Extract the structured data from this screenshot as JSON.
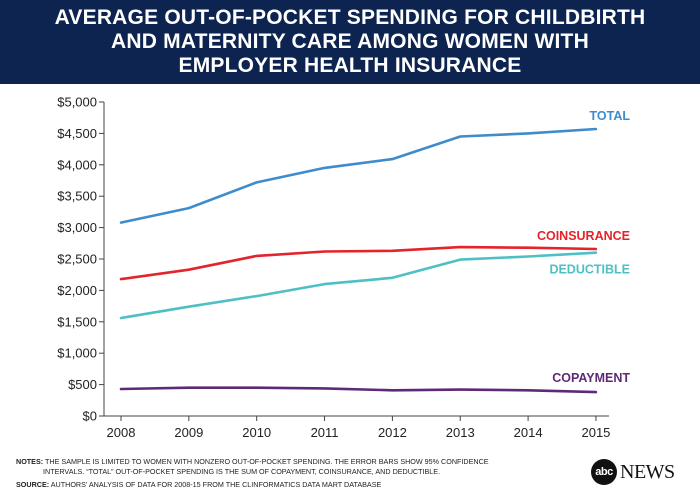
{
  "header": {
    "title_lines": [
      "AVERAGE OUT-OF-POCKET SPENDING FOR CHILDBIRTH",
      "AND MATERNITY CARE AMONG WOMEN WITH",
      "EMPLOYER HEALTH INSURANCE"
    ]
  },
  "chart_data": {
    "type": "line",
    "title": "AVERAGE OUT-OF-POCKET SPENDING FOR CHILDBIRTH AND MATERNITY CARE AMONG WOMEN WITH EMPLOYER HEALTH INSURANCE",
    "xlabel": "",
    "ylabel": "",
    "x": [
      "2008",
      "2009",
      "2010",
      "2011",
      "2012",
      "2013",
      "2014",
      "2015"
    ],
    "ylim": [
      0,
      5000
    ],
    "yticks": [
      0,
      500,
      1000,
      1500,
      2000,
      2500,
      3000,
      3500,
      4000,
      4500,
      5000
    ],
    "ytick_labels": [
      "$0",
      "$500",
      "$1,000",
      "$1,500",
      "$2,000",
      "$2,500",
      "$3,000",
      "$3,500",
      "$4,000",
      "$4,500",
      "$5,000"
    ],
    "grid": false,
    "series": [
      {
        "name": "TOTAL",
        "color": "#3f8ccc",
        "values": [
          3080,
          3310,
          3720,
          3950,
          4090,
          4450,
          4500,
          4570
        ]
      },
      {
        "name": "COINSURANCE",
        "color": "#e3242b",
        "values": [
          2180,
          2330,
          2550,
          2620,
          2630,
          2690,
          2680,
          2660
        ]
      },
      {
        "name": "DEDUCTIBLE",
        "color": "#4fbfc6",
        "values": [
          1560,
          1740,
          1910,
          2100,
          2200,
          2490,
          2540,
          2600
        ]
      },
      {
        "name": "COPAYMENT",
        "color": "#5e2a78",
        "values": [
          430,
          450,
          450,
          440,
          410,
          420,
          410,
          380
        ]
      }
    ]
  },
  "footer": {
    "notes_label": "NOTES:",
    "notes_line1": "THE SAMPLE IS LIMITED TO WOMEN WITH NONZERO OUT-OF-POCKET SPENDING. THE ERROR BARS SHOW 95% CONFIDENCE",
    "notes_line2": "INTERVALS. “TOTAL” OUT-OF-POCKET SPENDING IS THE SUM OF COPAYMENT, COINSURANCE, AND DEDUCTIBLE.",
    "source_label": "SOURCE:",
    "source_text": "AUTHORS’ ANALYSIS OF DATA FOR 2008-15 FROM THE CLINFORMATICS DATA MART DATABASE"
  },
  "logo": {
    "abc": "abc",
    "news": "NEWS"
  }
}
